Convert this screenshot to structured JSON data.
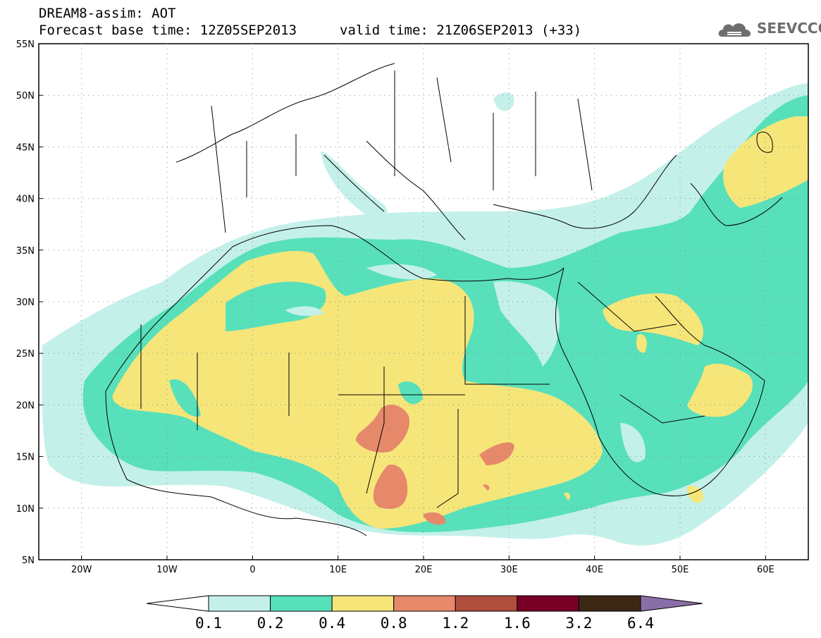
{
  "title": {
    "line1": "DREAM8-assim: AOT",
    "base_time": "Forecast base time: 12Z05SEP2013",
    "valid_time": "valid time: 21Z06SEP2013 (+33)"
  },
  "logo": {
    "text": "SEEVCCC",
    "icon": "cloud-logo-icon"
  },
  "axes": {
    "lat_labels": [
      "55N",
      "50N",
      "45N",
      "40N",
      "35N",
      "30N",
      "25N",
      "20N",
      "15N",
      "10N",
      "5N"
    ],
    "lon_labels": [
      "20W",
      "10W",
      "0",
      "10E",
      "20E",
      "30E",
      "40E",
      "50E",
      "60E"
    ]
  },
  "legend": {
    "levels": [
      "0.1",
      "0.2",
      "0.4",
      "0.8",
      "1.2",
      "1.6",
      "3.2",
      "6.4"
    ],
    "colors": [
      "#ffffff",
      "#c4f0ea",
      "#58e0bb",
      "#f6e67a",
      "#e6886a",
      "#b04e3e",
      "#780026",
      "#3d2816",
      "#8a6ea8"
    ]
  }
}
